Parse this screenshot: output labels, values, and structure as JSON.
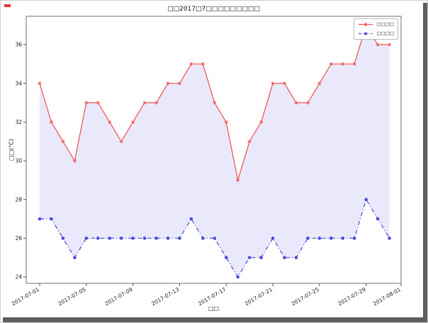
{
  "window": {
    "background": "#ffffff",
    "shadow_color": "#5e5e5e",
    "accent_mark_color": "#e03434"
  },
  "chart_data": {
    "type": "line",
    "title": "□□2017□7□□□□□□□□□",
    "xlabel": "□□",
    "ylabel": "□□(°C)",
    "ylim": [
      23.7,
      37.5
    ],
    "y_ticks": [
      24,
      26,
      28,
      30,
      32,
      34,
      36
    ],
    "x_ticks": [
      {
        "day": 1,
        "label": "2017-07-01"
      },
      {
        "day": 5,
        "label": "2017-07-05"
      },
      {
        "day": 9,
        "label": "2017-07-09"
      },
      {
        "day": 13,
        "label": "2017-07-13"
      },
      {
        "day": 17,
        "label": "2017-07-17"
      },
      {
        "day": 21,
        "label": "2017-07-21"
      },
      {
        "day": 25,
        "label": "2017-07-25"
      },
      {
        "day": 29,
        "label": "2017-07-29"
      },
      {
        "day": 32,
        "label": "2017-08-01"
      }
    ],
    "x_days": 31,
    "grid": false,
    "legend_position": "upper-right",
    "fill_between": true,
    "fill_color": "rgba(110,110,225,0.15)",
    "series": [
      {
        "name": "□□□□",
        "color": "#ef4f4f",
        "line_style": "solid",
        "marker": "asterisk",
        "values": [
          34,
          32,
          31,
          30,
          33,
          33,
          32,
          31,
          32,
          33,
          33,
          34,
          34,
          35,
          35,
          33,
          32,
          29,
          31,
          32,
          34,
          34,
          33,
          33,
          34,
          35,
          35,
          35,
          37,
          36,
          36
        ]
      },
      {
        "name": "□□□□",
        "color": "#4a4ade",
        "line_style": "dash-dot",
        "marker": "circle",
        "values": [
          27,
          27,
          26,
          25,
          26,
          26,
          26,
          26,
          26,
          26,
          26,
          26,
          26,
          27,
          26,
          26,
          25,
          24,
          25,
          25,
          26,
          25,
          25,
          26,
          26,
          26,
          26,
          26,
          28,
          27,
          26
        ]
      }
    ]
  }
}
